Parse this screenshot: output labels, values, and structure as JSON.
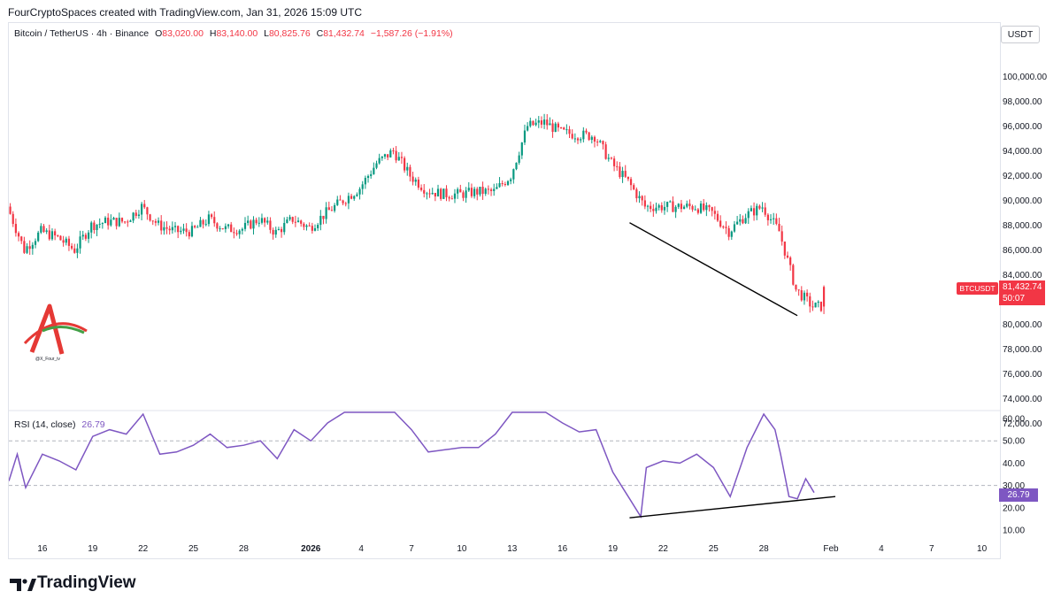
{
  "header": {
    "creator": "FourCryptoSpaces created with TradingView.com, Jan 31, 2026 15:09 UTC"
  },
  "legend": {
    "symbol": "Bitcoin / TetherUS · 4h · Binance",
    "open_label": "O",
    "open": "83,020.00",
    "high_label": "H",
    "high": "83,140.00",
    "low_label": "L",
    "low": "80,825.76",
    "close_label": "C",
    "close": "81,432.74",
    "change": "−1,587.26 (−1.91%)"
  },
  "currency": "USDT",
  "price_tag": {
    "ticker": "BTCUSDT",
    "price": "81,432.74",
    "countdown": "50:07"
  },
  "rsi_legend": {
    "label": "RSI (14, close)",
    "value": "26.79"
  },
  "rsi_tag": "26.79",
  "watermark": {
    "text": "@X_Four_iv"
  },
  "brand": "TradingView",
  "colors": {
    "up": "#26a69a",
    "up_candle": "#089981",
    "down": "#f23645",
    "rsi": "#7e57c2",
    "grid": "#e0e3eb"
  },
  "chart_data": [
    {
      "type": "candlestick",
      "title": "",
      "interval": "4h",
      "y_axis": {
        "position": "right",
        "ylim": [
          71500,
          101000
        ],
        "ticks": [
          "100,000.00",
          "98,000.00",
          "96,000.00",
          "94,000.00",
          "92,000.00",
          "90,000.00",
          "88,000.00",
          "86,000.00",
          "84,000.00",
          "82,000.00",
          "80,000.00",
          "78,000.00",
          "76,000.00",
          "74,000.00",
          "72,000.00"
        ],
        "tick_values": [
          100000,
          98000,
          96000,
          94000,
          92000,
          90000,
          88000,
          86000,
          84000,
          82000,
          80000,
          78000,
          76000,
          74000,
          72000
        ]
      },
      "x_axis": {
        "start": "2025-12-14",
        "end": "2026-02-10",
        "ticks": [
          {
            "label": "16",
            "date": "2025-12-16"
          },
          {
            "label": "19",
            "date": "2025-12-19"
          },
          {
            "label": "22",
            "date": "2025-12-22"
          },
          {
            "label": "25",
            "date": "2025-12-25"
          },
          {
            "label": "28",
            "date": "2025-12-28"
          },
          {
            "label": "2026",
            "date": "2026-01-01"
          },
          {
            "label": "4",
            "date": "2026-01-04"
          },
          {
            "label": "7",
            "date": "2026-01-07"
          },
          {
            "label": "10",
            "date": "2026-01-10"
          },
          {
            "label": "13",
            "date": "2026-01-13"
          },
          {
            "label": "16",
            "date": "2026-01-16"
          },
          {
            "label": "19",
            "date": "2026-01-19"
          },
          {
            "label": "22",
            "date": "2026-01-22"
          },
          {
            "label": "25",
            "date": "2026-01-25"
          },
          {
            "label": "28",
            "date": "2026-01-28"
          },
          {
            "label": "Feb",
            "date": "2026-02-01"
          },
          {
            "label": "4",
            "date": "2026-02-04"
          },
          {
            "label": "7",
            "date": "2026-02-07"
          },
          {
            "label": "10",
            "date": "2026-02-10"
          }
        ]
      },
      "grid": false,
      "price_path": [
        {
          "date": "2025-12-14",
          "price": 89500
        },
        {
          "date": "2025-12-15",
          "price": 86000
        },
        {
          "date": "2025-12-16",
          "price": 87500
        },
        {
          "date": "2025-12-17",
          "price": 87000
        },
        {
          "date": "2025-12-18",
          "price": 86000
        },
        {
          "date": "2025-12-19",
          "price": 88000
        },
        {
          "date": "2025-12-20",
          "price": 88300
        },
        {
          "date": "2025-12-21",
          "price": 88300
        },
        {
          "date": "2025-12-22",
          "price": 89500
        },
        {
          "date": "2025-12-23",
          "price": 88000
        },
        {
          "date": "2025-12-24",
          "price": 87500
        },
        {
          "date": "2025-12-25",
          "price": 87500
        },
        {
          "date": "2025-12-26",
          "price": 88500
        },
        {
          "date": "2025-12-27",
          "price": 87700
        },
        {
          "date": "2025-12-28",
          "price": 87700
        },
        {
          "date": "2025-12-29",
          "price": 88500
        },
        {
          "date": "2025-12-30",
          "price": 87400
        },
        {
          "date": "2025-12-31",
          "price": 88500
        },
        {
          "date": "2026-01-01",
          "price": 87800
        },
        {
          "date": "2026-01-02",
          "price": 89000
        },
        {
          "date": "2026-01-03",
          "price": 90000
        },
        {
          "date": "2026-01-04",
          "price": 91000
        },
        {
          "date": "2026-01-05",
          "price": 93000
        },
        {
          "date": "2026-01-06",
          "price": 94000
        },
        {
          "date": "2026-01-07",
          "price": 92000
        },
        {
          "date": "2026-01-08",
          "price": 90800
        },
        {
          "date": "2026-01-09",
          "price": 90500
        },
        {
          "date": "2026-01-10",
          "price": 90500
        },
        {
          "date": "2026-01-11",
          "price": 90700
        },
        {
          "date": "2026-01-12",
          "price": 90700
        },
        {
          "date": "2026-01-13",
          "price": 92000
        },
        {
          "date": "2026-01-14",
          "price": 96000
        },
        {
          "date": "2026-01-15",
          "price": 96300
        },
        {
          "date": "2026-01-16",
          "price": 95500
        },
        {
          "date": "2026-01-17",
          "price": 95300
        },
        {
          "date": "2026-01-18",
          "price": 95200
        },
        {
          "date": "2026-01-19",
          "price": 93000
        },
        {
          "date": "2026-01-20",
          "price": 91500
        },
        {
          "date": "2026-01-21",
          "price": 89500
        },
        {
          "date": "2026-01-22",
          "price": 89500
        },
        {
          "date": "2026-01-23",
          "price": 89500
        },
        {
          "date": "2026-01-24",
          "price": 89500
        },
        {
          "date": "2026-01-25",
          "price": 89000
        },
        {
          "date": "2026-01-26",
          "price": 87500
        },
        {
          "date": "2026-01-27",
          "price": 88800
        },
        {
          "date": "2026-01-28",
          "price": 89500
        },
        {
          "date": "2026-01-29",
          "price": 87500
        },
        {
          "date": "2026-01-30",
          "price": 82800
        },
        {
          "date": "2026-01-31",
          "price": 81433
        }
      ],
      "annotations": [
        {
          "type": "trendline",
          "from": {
            "date": "2026-01-20",
            "price": 88200
          },
          "to": {
            "date": "2026-01-30",
            "price": 80700
          }
        }
      ]
    },
    {
      "type": "line",
      "title": "RSI (14, close)",
      "ylim": [
        5,
        67
      ],
      "y_ticks": [
        60,
        50,
        40,
        30,
        20,
        10
      ],
      "y_tick_labels": [
        "60.00",
        "50.00",
        "40.00",
        "30.00",
        "20.00",
        "10.00"
      ],
      "levels": [
        50,
        30
      ],
      "series": [
        {
          "name": "RSI (14, close)",
          "points": [
            {
              "date": "2025-12-14",
              "value": 32
            },
            {
              "date": "2025-12-14T12:00",
              "value": 44
            },
            {
              "date": "2025-12-15",
              "value": 29
            },
            {
              "date": "2025-12-16",
              "value": 44
            },
            {
              "date": "2025-12-17",
              "value": 41
            },
            {
              "date": "2025-12-18",
              "value": 37
            },
            {
              "date": "2025-12-19",
              "value": 52
            },
            {
              "date": "2025-12-20",
              "value": 55
            },
            {
              "date": "2025-12-21",
              "value": 53
            },
            {
              "date": "2025-12-22",
              "value": 62
            },
            {
              "date": "2025-12-23",
              "value": 44
            },
            {
              "date": "2025-12-24",
              "value": 45
            },
            {
              "date": "2025-12-25",
              "value": 48
            },
            {
              "date": "2025-12-26",
              "value": 53
            },
            {
              "date": "2025-12-27",
              "value": 47
            },
            {
              "date": "2025-12-28",
              "value": 48
            },
            {
              "date": "2025-12-29",
              "value": 50
            },
            {
              "date": "2025-12-30",
              "value": 42
            },
            {
              "date": "2025-12-31",
              "value": 55
            },
            {
              "date": "2026-01-01",
              "value": 50
            },
            {
              "date": "2026-01-02",
              "value": 58
            },
            {
              "date": "2026-01-03",
              "value": 65
            },
            {
              "date": "2026-01-04",
              "value": 68
            },
            {
              "date": "2026-01-06",
              "value": 68
            },
            {
              "date": "2026-01-07",
              "value": 55
            },
            {
              "date": "2026-01-08",
              "value": 45
            },
            {
              "date": "2026-01-09",
              "value": 46
            },
            {
              "date": "2026-01-10",
              "value": 47
            },
            {
              "date": "2026-01-11",
              "value": 47
            },
            {
              "date": "2026-01-12",
              "value": 53
            },
            {
              "date": "2026-01-13",
              "value": 68
            },
            {
              "date": "2026-01-15",
              "value": 68
            },
            {
              "date": "2026-01-16",
              "value": 58
            },
            {
              "date": "2026-01-17",
              "value": 54
            },
            {
              "date": "2026-01-18",
              "value": 55
            },
            {
              "date": "2026-01-19",
              "value": 36
            },
            {
              "date": "2026-01-20",
              "value": 24
            },
            {
              "date": "2026-01-20T16:00",
              "value": 16
            },
            {
              "date": "2026-01-21",
              "value": 38
            },
            {
              "date": "2026-01-22",
              "value": 41
            },
            {
              "date": "2026-01-23",
              "value": 40
            },
            {
              "date": "2026-01-24",
              "value": 44
            },
            {
              "date": "2026-01-25",
              "value": 38
            },
            {
              "date": "2026-01-26",
              "value": 25
            },
            {
              "date": "2026-01-27",
              "value": 47
            },
            {
              "date": "2026-01-28",
              "value": 62
            },
            {
              "date": "2026-01-28T16:00",
              "value": 55
            },
            {
              "date": "2026-01-29",
              "value": 44
            },
            {
              "date": "2026-01-29T12:00",
              "value": 25
            },
            {
              "date": "2026-01-30",
              "value": 24
            },
            {
              "date": "2026-01-30T12:00",
              "value": 33
            },
            {
              "date": "2026-01-31",
              "value": 26.79
            }
          ]
        }
      ],
      "annotations": [
        {
          "type": "trendline",
          "from": {
            "date": "2026-01-20",
            "value": 15.5
          },
          "to": {
            "date": "2026-02-01",
            "value": 25
          }
        }
      ]
    }
  ]
}
